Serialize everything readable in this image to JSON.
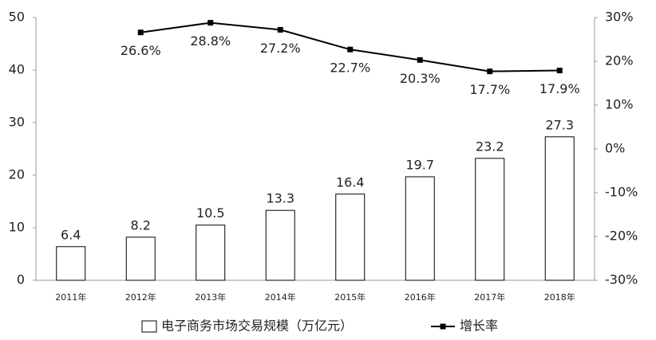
{
  "chart_data": {
    "type": "combo",
    "categories": [
      "2011年",
      "2012年",
      "2013年",
      "2014年",
      "2015年",
      "2016年",
      "2017年",
      "2018年"
    ],
    "series": [
      {
        "name": "电子商务市场交易规模（万亿元）",
        "type": "bar",
        "color": "#ffffff",
        "values": [
          6.4,
          8.2,
          10.5,
          13.3,
          16.4,
          19.7,
          23.2,
          27.3
        ]
      },
      {
        "name": "增长率",
        "type": "line",
        "axis": "y2",
        "color": "#000000",
        "values": [
          null,
          26.6,
          28.8,
          27.2,
          22.7,
          20.3,
          17.7,
          17.9
        ],
        "value_labels": [
          null,
          "26.6%",
          "28.8%",
          "27.2%",
          "22.7%",
          "20.3%",
          "17.7%",
          "17.9%"
        ]
      }
    ],
    "ylim": [
      0,
      50
    ],
    "yticks": [
      0,
      10,
      20,
      30,
      40,
      50
    ],
    "y2lim": [
      -30,
      30
    ],
    "y2ticks": [
      {
        "value": -30,
        "label": "-30%"
      },
      {
        "value": -20,
        "label": "-20%"
      },
      {
        "value": -10,
        "label": "-10%"
      },
      {
        "value": 0,
        "label": "0%"
      },
      {
        "value": 10,
        "label": "10%"
      },
      {
        "value": 20,
        "label": "20%"
      },
      {
        "value": 30,
        "label": "30%"
      }
    ],
    "grid": false
  }
}
